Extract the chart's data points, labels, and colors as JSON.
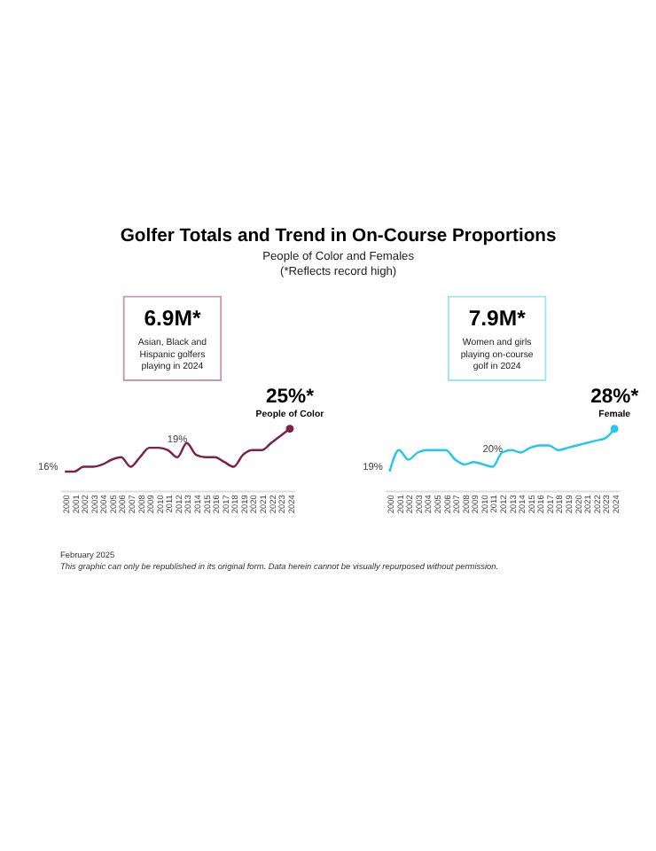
{
  "chart_data": [
    {
      "type": "line",
      "title": "Golfer Totals and Trend in On-Course Proportions",
      "subtitle": "People of Color and Females\n(*Reflects record high)",
      "annotations": [
        "6.9M*",
        "Asian, Black and\nHispanic golfers\nplaying in 2024"
      ],
      "categories": [
        "2000",
        "2001",
        "2002",
        "2003",
        "2004",
        "2005",
        "2006",
        "2007",
        "2008",
        "2009",
        "2010",
        "2011",
        "2012",
        "2013",
        "2014",
        "2015",
        "2016",
        "2017",
        "2018",
        "2019",
        "2020",
        "2021",
        "2022",
        "2023",
        "2024"
      ],
      "series": [
        {
          "name": "People of Color",
          "color": "#7d2148",
          "values": [
            16,
            16,
            17,
            17,
            17.5,
            18.5,
            19,
            17,
            19,
            21,
            21,
            20.5,
            19,
            22,
            19.5,
            19,
            19,
            18,
            17,
            19.5,
            20.5,
            20.5,
            22,
            23.5,
            25
          ],
          "value_labels": [
            "16%",
            null,
            null,
            null,
            null,
            null,
            null,
            null,
            null,
            null,
            null,
            null,
            "19%",
            null,
            null,
            null,
            null,
            null,
            null,
            null,
            null,
            null,
            null,
            null,
            "25%*"
          ]
        }
      ]
    },
    {
      "type": "line",
      "annotations": [
        "7.9M*",
        "Women and girls\nplaying on-course\ngolf in 2024",
        "February 2025",
        "This graphic can only be republished in its original form. Data herein cannot be visually repurposed without permission."
      ],
      "categories": [
        "2000",
        "2001",
        "2002",
        "2003",
        "2004",
        "2005",
        "2006",
        "2007",
        "2008",
        "2009",
        "2010",
        "2011",
        "2012",
        "2013",
        "2014",
        "2015",
        "2016",
        "2017",
        "2018",
        "2019",
        "2020",
        "2021",
        "2022",
        "2023",
        "2024"
      ],
      "series": [
        {
          "name": "Female",
          "color": "#22c6f0",
          "values": [
            19,
            23.5,
            21.5,
            23,
            23.5,
            23.5,
            23.5,
            21.5,
            20.5,
            21,
            20.5,
            20,
            23,
            23.5,
            23,
            24,
            24.5,
            24.5,
            23.5,
            24,
            24.5,
            25,
            25.5,
            26,
            28
          ],
          "value_labels": [
            "19%",
            null,
            null,
            null,
            null,
            null,
            null,
            null,
            null,
            null,
            null,
            "20%",
            null,
            null,
            null,
            null,
            null,
            null,
            null,
            null,
            null,
            null,
            null,
            null,
            "28%*"
          ]
        }
      ]
    }
  ]
}
